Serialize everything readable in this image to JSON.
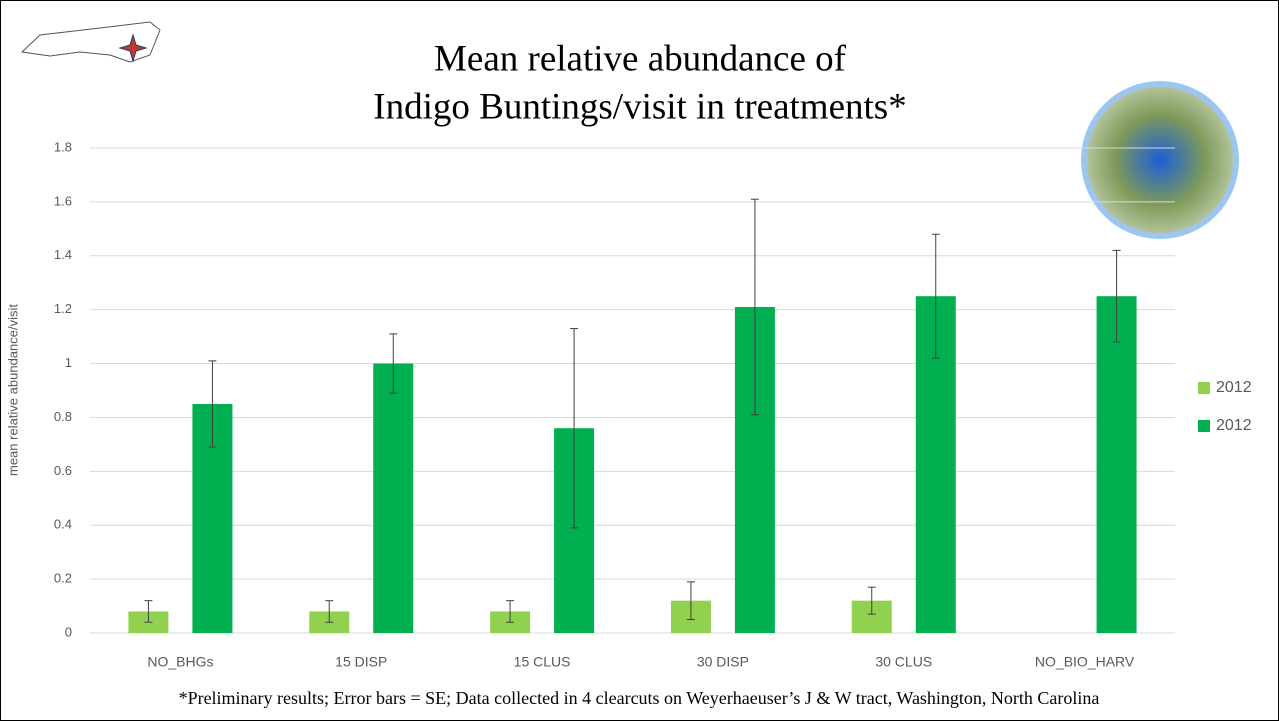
{
  "chart_data": {
    "type": "bar",
    "title_lines": [
      "Mean relative abundance of",
      "Indigo Buntings/visit in treatments*"
    ],
    "y_label": "mean relative abundance/visit",
    "footnote": "*Preliminary results; Error bars = SE; Data collected in 4 clearcuts on Weyerhaeuser’s J & W tract, Washington, North Carolina",
    "categories": [
      "NO_BHGs",
      "15 DISP",
      "15 CLUS",
      "30 DISP",
      "30 CLUS",
      "NO_BIO_HARV"
    ],
    "series": [
      {
        "name": "2012",
        "color": "#92d050",
        "values": [
          0.08,
          0.08,
          0.08,
          0.12,
          0.12,
          null
        ],
        "errors": [
          0.04,
          0.04,
          0.04,
          0.07,
          0.05,
          null
        ]
      },
      {
        "name": "2012",
        "color": "#00b050",
        "values": [
          0.85,
          1.0,
          0.76,
          1.21,
          1.25,
          1.25
        ],
        "errors": [
          0.16,
          0.11,
          0.37,
          0.4,
          0.23,
          0.17
        ]
      }
    ],
    "ylim": [
      0,
      1.8
    ],
    "yticks": [
      0,
      0.2,
      0.4,
      0.6,
      0.8,
      1,
      1.2,
      1.4,
      1.6,
      1.8
    ],
    "grid": true,
    "legend": "right"
  }
}
